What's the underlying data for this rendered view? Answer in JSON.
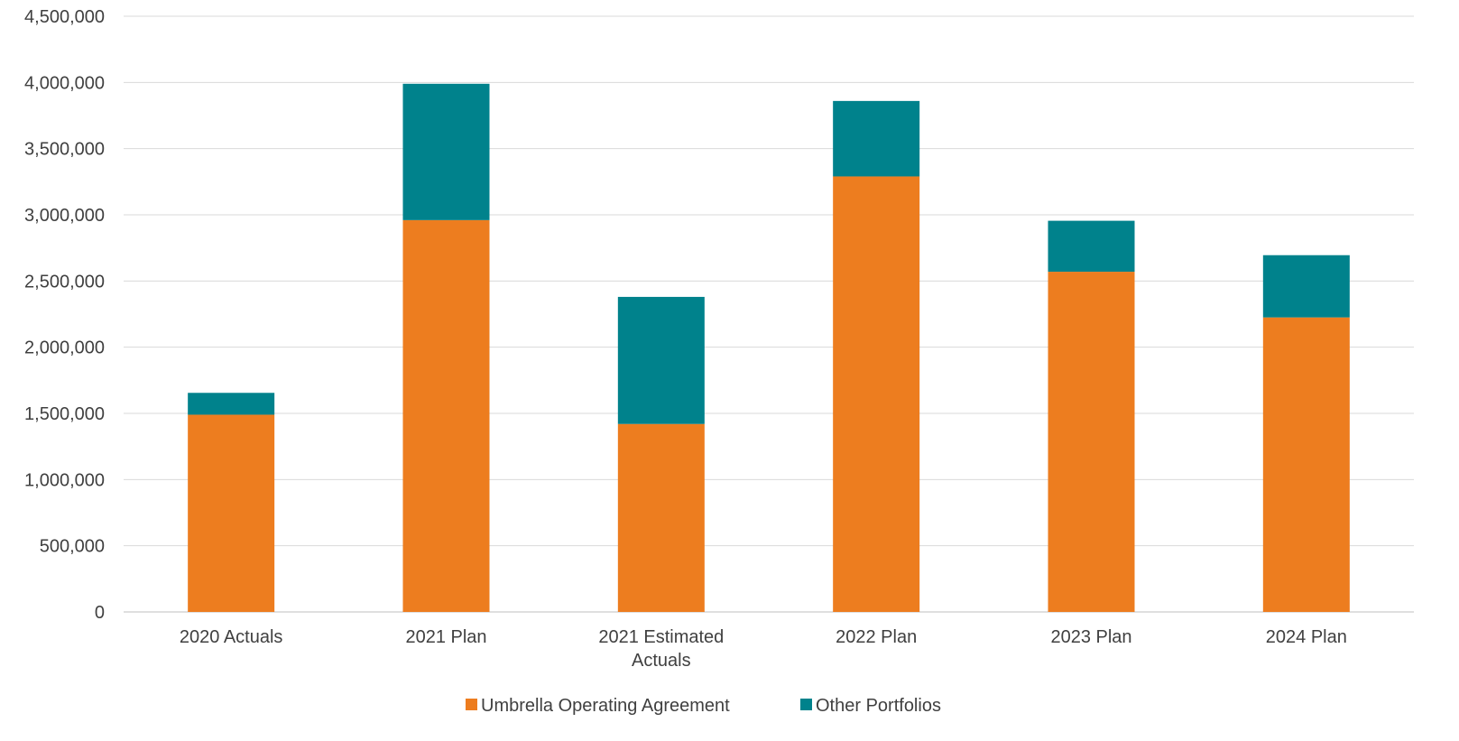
{
  "chart_data": {
    "type": "bar",
    "stacked": true,
    "categories": [
      [
        "2020 Actuals"
      ],
      [
        "2021 Plan"
      ],
      [
        "2021 Estimated",
        "Actuals"
      ],
      [
        "2022 Plan"
      ],
      [
        "2023 Plan"
      ],
      [
        "2024 Plan"
      ]
    ],
    "series": [
      {
        "name": "Umbrella Operating Agreement",
        "color": "#ED7D1F",
        "values": [
          1490000,
          2960000,
          1420000,
          3290000,
          2570000,
          2225000
        ]
      },
      {
        "name": "Other Portfolios",
        "color": "#00828C",
        "values": [
          165000,
          1030000,
          960000,
          570000,
          385000,
          470000
        ]
      }
    ],
    "ylim": [
      0,
      4500000
    ],
    "ytick_labels": [
      "0",
      "500,000",
      "1,000,000",
      "1,500,000",
      "2,000,000",
      "2,500,000",
      "3,000,000",
      "3,500,000",
      "4,000,000",
      "4,500,000"
    ],
    "grid": true,
    "legend_position": "bottom-center",
    "title": "",
    "xlabel": "",
    "ylabel": ""
  }
}
